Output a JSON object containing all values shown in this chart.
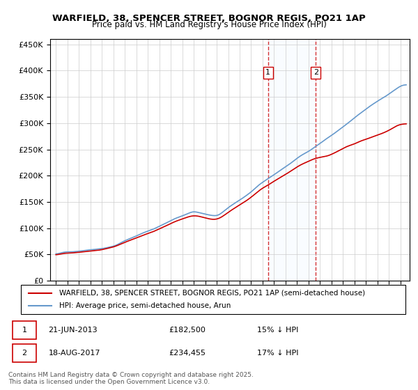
{
  "title_line1": "WARFIELD, 38, SPENCER STREET, BOGNOR REGIS, PO21 1AP",
  "title_line2": "Price paid vs. HM Land Registry's House Price Index (HPI)",
  "ylabel": "",
  "background_color": "#ffffff",
  "plot_bg_color": "#ffffff",
  "grid_color": "#cccccc",
  "hpi_color": "#6699cc",
  "price_color": "#cc0000",
  "dashed_line_color": "#cc0000",
  "shade_color": "#ddeeff",
  "annotation1_date": "2013-06-21",
  "annotation1_label": "1",
  "annotation1_price": 182500,
  "annotation2_date": "2017-08-18",
  "annotation2_label": "2",
  "annotation2_price": 234455,
  "yticks": [
    0,
    50000,
    100000,
    150000,
    200000,
    250000,
    300000,
    350000,
    400000,
    450000
  ],
  "ytick_labels": [
    "£0",
    "£50K",
    "£100K",
    "£150K",
    "£200K",
    "£250K",
    "£300K",
    "£350K",
    "£400K",
    "£450K"
  ],
  "legend_label_price": "WARFIELD, 38, SPENCER STREET, BOGNOR REGIS, PO21 1AP (semi-detached house)",
  "legend_label_hpi": "HPI: Average price, semi-detached house, Arun",
  "footer": "Contains HM Land Registry data © Crown copyright and database right 2025.\nThis data is licensed under the Open Government Licence v3.0.",
  "table_row1": "1    21-JUN-2013    £182,500    15% ↓ HPI",
  "table_row2": "2    18-AUG-2017    £234,455    17% ↓ HPI"
}
